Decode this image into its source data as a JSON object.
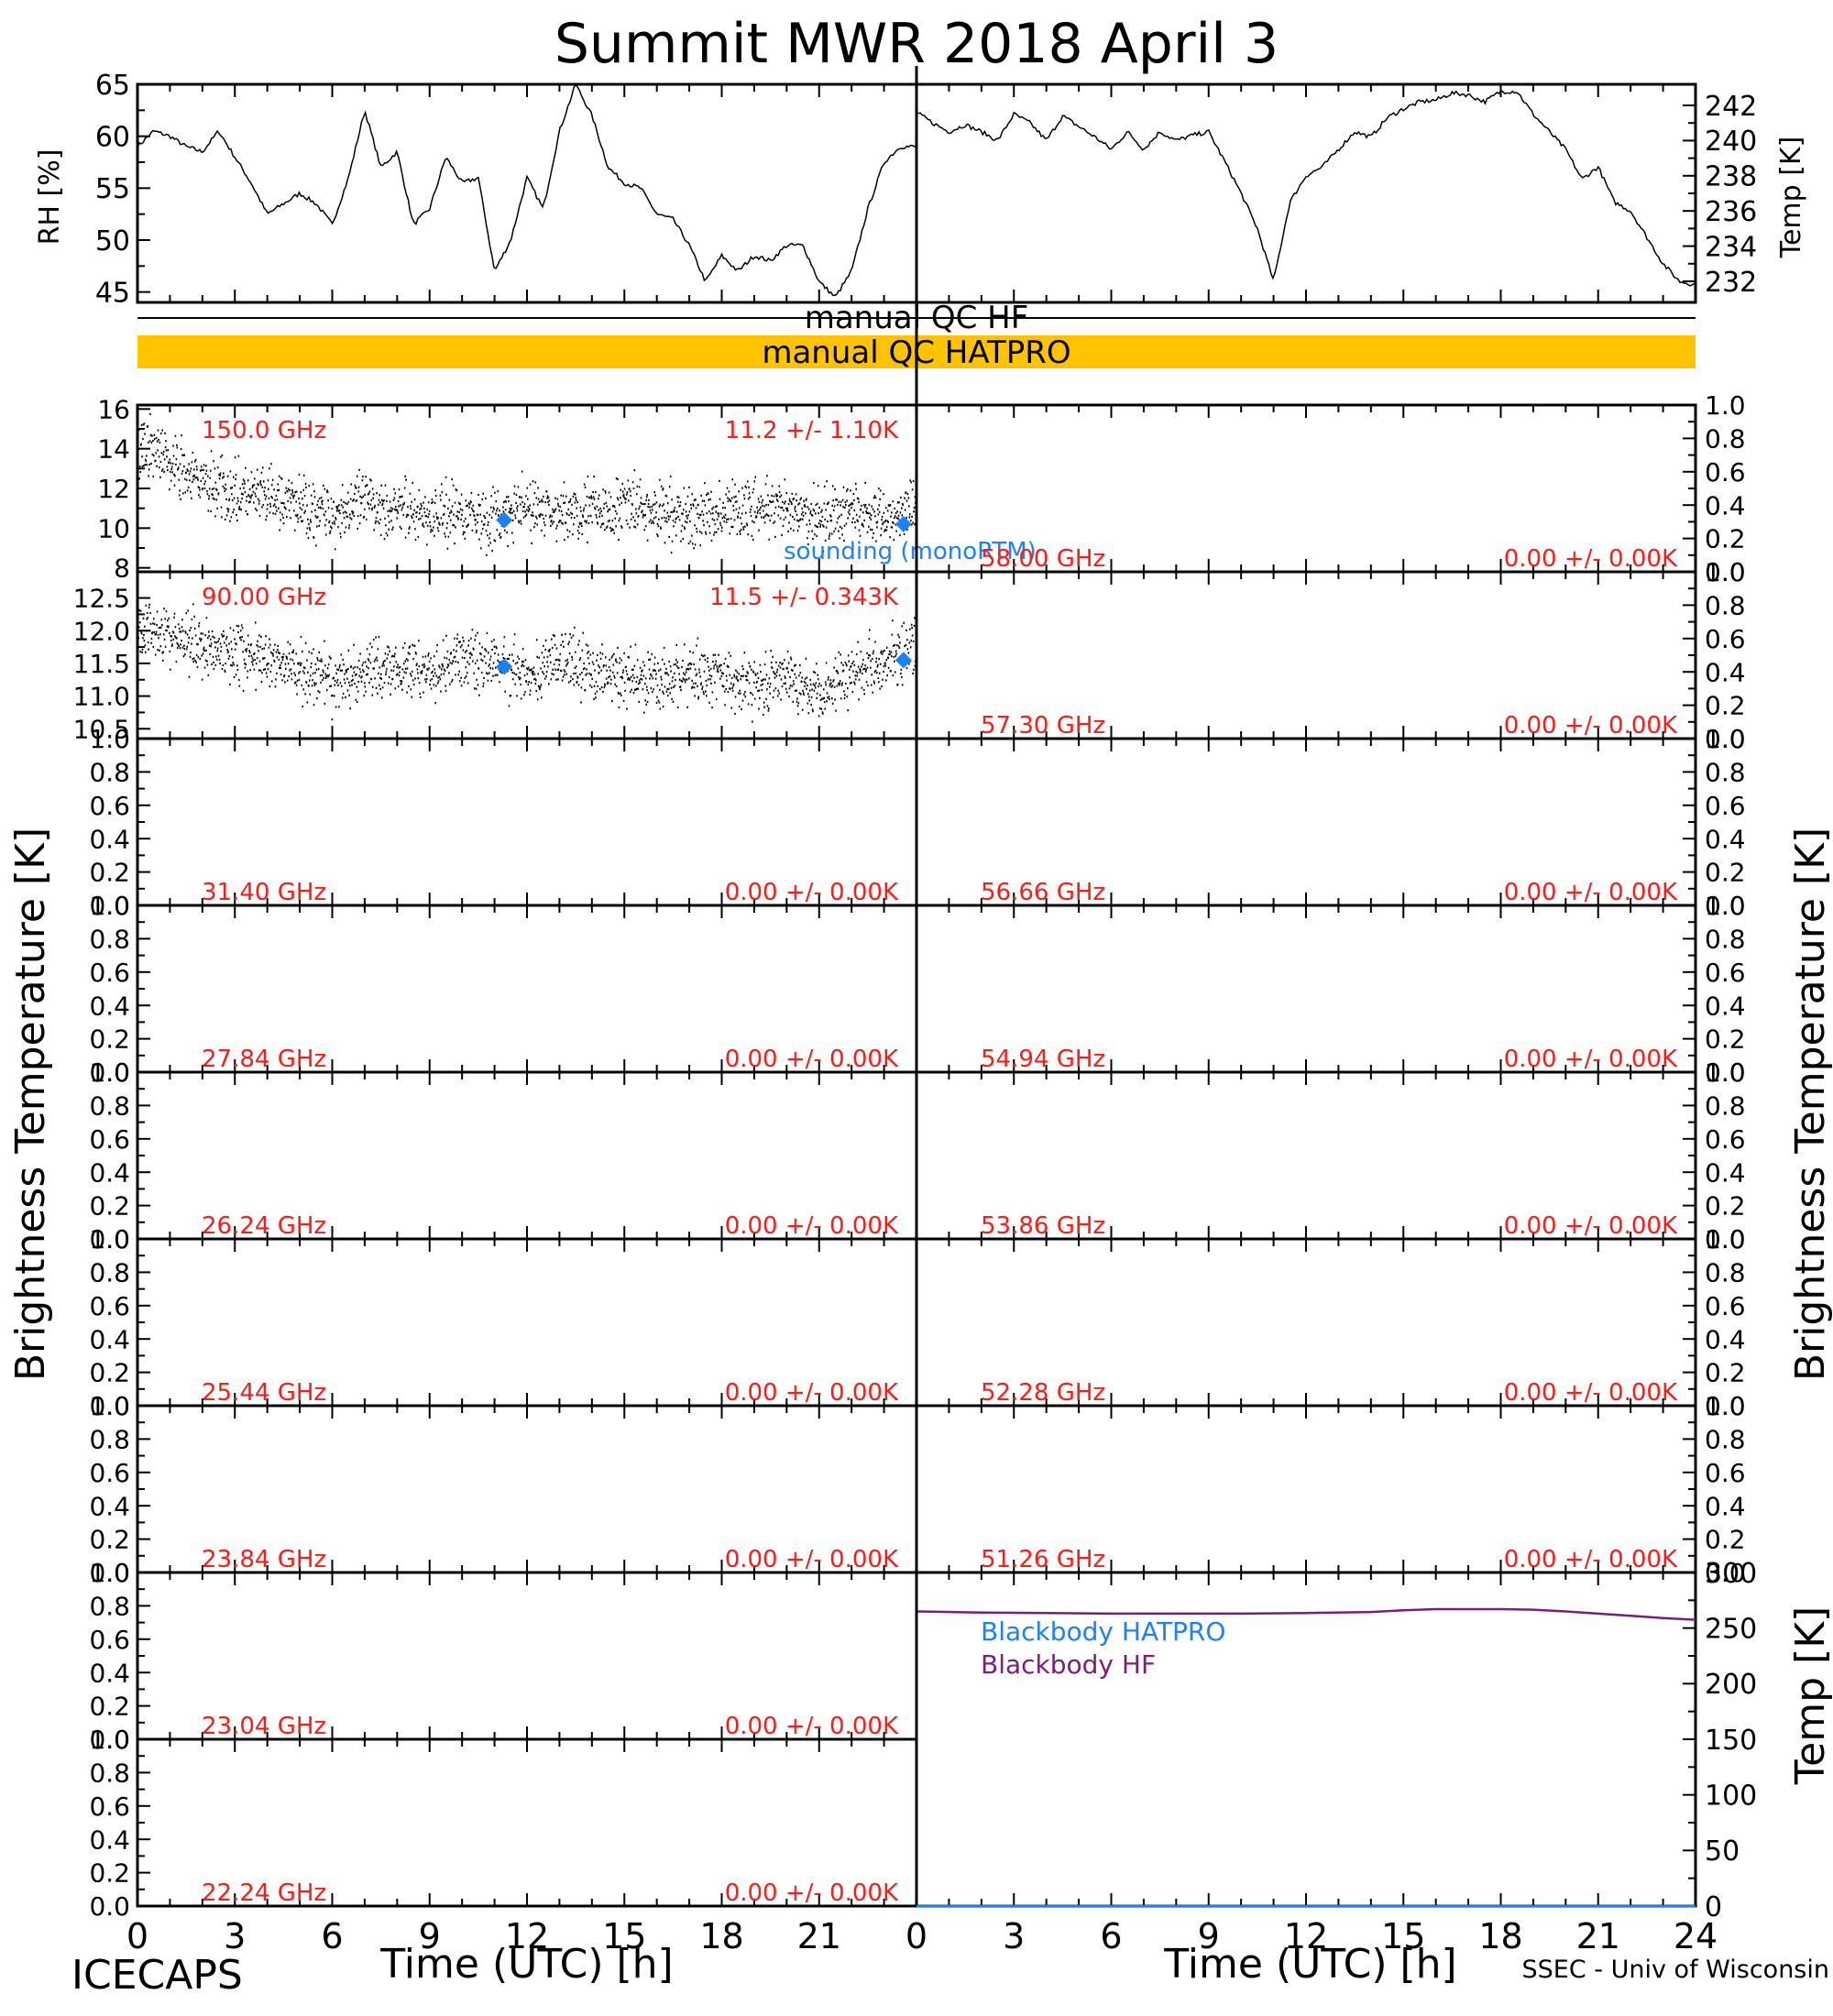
{
  "title": "Summit MWR 2018 April  3",
  "footer": {
    "left": "ICECAPS",
    "right": "SSEC - Univ of Wisconsin"
  },
  "colors": {
    "axis": "#000000",
    "data": "#000000",
    "channel_label": "#ff1a1a",
    "sounding": "#1a82ff",
    "qc_band": "#ffc300",
    "bb_hatpro": "#1a82ff",
    "bb_hf": "#7a1f78"
  },
  "qc": {
    "hf_label": "manual  QC HF",
    "hatpro_label": "manual  QC HATPRO"
  },
  "axis_labels": {
    "time": "Time (UTC) [h]",
    "brightness": "Brightness Temperature [K]",
    "rh": "RH [%]",
    "temp": "Temp [K]"
  },
  "chart_data": [
    {
      "type": "line",
      "name": "rh-panel",
      "ylabel": "RH [%]",
      "xlim": [
        0,
        24
      ],
      "ylim": [
        44,
        65
      ],
      "yticks": [
        "45",
        "50",
        "55",
        "60",
        "65"
      ],
      "x": [
        0,
        0.5,
        1,
        1.5,
        2,
        2.5,
        3,
        3.5,
        4,
        4.5,
        5,
        5.5,
        6,
        6.5,
        7,
        7.5,
        8,
        8.5,
        9,
        9.5,
        10,
        10.5,
        11,
        11.5,
        12,
        12.5,
        13,
        13.5,
        14,
        14.5,
        15,
        15.5,
        16,
        16.5,
        17,
        17.5,
        18,
        18.5,
        19,
        19.5,
        20,
        20.5,
        21,
        21.5,
        22,
        22.5,
        23,
        23.5,
        24
      ],
      "y": [
        59,
        60.5,
        60,
        59,
        58.5,
        60.5,
        58,
        55.5,
        52.5,
        53.5,
        54.5,
        53.5,
        51.5,
        56,
        62.5,
        57,
        58.5,
        51.5,
        53,
        58,
        55.5,
        56,
        47,
        50,
        56,
        53,
        60.5,
        65,
        62,
        57,
        55.5,
        55,
        52.5,
        52,
        49.5,
        46,
        48.5,
        47,
        48.5,
        48,
        49.5,
        49.5,
        46,
        44.5,
        47,
        53,
        57.5,
        59,
        59
      ]
    },
    {
      "type": "line",
      "name": "temp-panel",
      "ylabel": "Temp [K]",
      "xlim": [
        0,
        24
      ],
      "ylim": [
        230.8,
        243.2
      ],
      "yticks": [
        "232",
        "234",
        "236",
        "238",
        "240",
        "242"
      ],
      "x": [
        0,
        0.5,
        1,
        1.5,
        2,
        2.5,
        3,
        3.5,
        4,
        4.5,
        5,
        5.5,
        6,
        6.5,
        7,
        7.5,
        8,
        8.5,
        9,
        9.5,
        10,
        10.5,
        11,
        11.5,
        12,
        12.5,
        13,
        13.5,
        14,
        14.5,
        15,
        15.5,
        16,
        16.5,
        17,
        17.5,
        18,
        18.5,
        19,
        19.5,
        20,
        20.5,
        21,
        21.5,
        22,
        22.5,
        23,
        23.5,
        24
      ],
      "y": [
        241.6,
        241,
        240.5,
        240.9,
        240.5,
        240,
        241.5,
        241,
        240,
        241.4,
        240.8,
        240.2,
        239.5,
        240.5,
        239.5,
        240.5,
        240,
        240.3,
        240.5,
        238.8,
        237,
        235,
        232,
        236.5,
        238,
        238.5,
        239.5,
        240.5,
        240.2,
        241.3,
        241.8,
        242.2,
        242.3,
        242.7,
        242.6,
        242.2,
        242.8,
        242.8,
        241.5,
        240.5,
        239.5,
        237.8,
        238.5,
        236.5,
        236,
        234.5,
        233,
        232,
        231.8
      ]
    },
    {
      "type": "scatter",
      "name": "150.0 GHz",
      "label": "150.0 GHz",
      "stat": "11.2 +/-  1.10K",
      "xlim": [
        0,
        24
      ],
      "ylim": [
        7.8,
        16.2
      ],
      "yticks": [
        "8",
        "10",
        "12",
        "14",
        "16"
      ],
      "trend_x": [
        0,
        0.5,
        1,
        2,
        3,
        4,
        5,
        6,
        7,
        8,
        9,
        10,
        11,
        12,
        13,
        14,
        15,
        16,
        17,
        18,
        19,
        20,
        21,
        22,
        23,
        24
      ],
      "trend_y": [
        14,
        14.2,
        13.2,
        12.3,
        11.8,
        11.5,
        11.2,
        10.8,
        11.3,
        11.0,
        10.7,
        10.9,
        10.4,
        11.1,
        10.8,
        10.9,
        11.2,
        10.8,
        10.6,
        10.9,
        11.1,
        10.8,
        10.7,
        11.0,
        10.5,
        11.2
      ],
      "noise": 1.1,
      "sounding_x": [
        11.3,
        23.6
      ],
      "sounding_y": [
        10.4,
        10.2
      ],
      "sounding_label": "sounding (monoRTM)"
    },
    {
      "type": "scatter",
      "name": "90.00 GHz",
      "label": "90.00 GHz",
      "stat": "11.5 +/- 0.343K",
      "xlim": [
        0,
        24
      ],
      "ylim": [
        10.35,
        12.9
      ],
      "yticks": [
        "10.5",
        "11.0",
        "11.5",
        "12.0",
        "12.5"
      ],
      "trend_x": [
        0,
        0.5,
        1,
        2,
        3,
        4,
        5,
        6,
        7,
        8,
        9,
        10,
        11,
        12,
        13,
        14,
        15,
        16,
        17,
        18,
        19,
        20,
        21,
        22,
        23,
        24
      ],
      "trend_y": [
        12.0,
        12.1,
        11.9,
        11.8,
        11.7,
        11.6,
        11.4,
        11.2,
        11.4,
        11.5,
        11.4,
        11.6,
        11.5,
        11.3,
        11.6,
        11.4,
        11.3,
        11.2,
        11.4,
        11.3,
        11.2,
        11.3,
        11.1,
        11.4,
        11.6,
        11.7
      ],
      "noise": 0.34,
      "sounding_x": [
        11.3,
        23.6
      ],
      "sounding_y": [
        11.45,
        11.55
      ]
    },
    {
      "type": "line",
      "name": "58.00 GHz",
      "label": "58.00 GHz",
      "stat": "0.00 +/-  0.00K",
      "xlim": [
        0,
        24
      ],
      "ylim": [
        0,
        1
      ]
    },
    {
      "type": "line",
      "name": "57.30 GHz",
      "label": "57.30 GHz",
      "stat": "0.00 +/-  0.00K",
      "xlim": [
        0,
        24
      ],
      "ylim": [
        0,
        1
      ]
    },
    {
      "type": "line",
      "name": "31.40 GHz",
      "label": "31.40 GHz",
      "stat": "0.00 +/-  0.00K",
      "xlim": [
        0,
        24
      ],
      "ylim": [
        0,
        1
      ]
    },
    {
      "type": "line",
      "name": "56.66 GHz",
      "label": "56.66 GHz",
      "stat": "0.00 +/-  0.00K",
      "xlim": [
        0,
        24
      ],
      "ylim": [
        0,
        1
      ]
    },
    {
      "type": "line",
      "name": "27.84 GHz",
      "label": "27.84 GHz",
      "stat": "0.00 +/-  0.00K",
      "xlim": [
        0,
        24
      ],
      "ylim": [
        0,
        1
      ]
    },
    {
      "type": "line",
      "name": "54.94 GHz",
      "label": "54.94 GHz",
      "stat": "0.00 +/-  0.00K",
      "xlim": [
        0,
        24
      ],
      "ylim": [
        0,
        1
      ]
    },
    {
      "type": "line",
      "name": "26.24 GHz",
      "label": "26.24 GHz",
      "stat": "0.00 +/-  0.00K",
      "xlim": [
        0,
        24
      ],
      "ylim": [
        0,
        1
      ]
    },
    {
      "type": "line",
      "name": "53.86 GHz",
      "label": "53.86 GHz",
      "stat": "0.00 +/-  0.00K",
      "xlim": [
        0,
        24
      ],
      "ylim": [
        0,
        1
      ]
    },
    {
      "type": "line",
      "name": "25.44 GHz",
      "label": "25.44 GHz",
      "stat": "0.00 +/-  0.00K",
      "xlim": [
        0,
        24
      ],
      "ylim": [
        0,
        1
      ]
    },
    {
      "type": "line",
      "name": "52.28 GHz",
      "label": "52.28 GHz",
      "stat": "0.00 +/-  0.00K",
      "xlim": [
        0,
        24
      ],
      "ylim": [
        0,
        1
      ]
    },
    {
      "type": "line",
      "name": "23.84 GHz",
      "label": "23.84 GHz",
      "stat": "0.00 +/-  0.00K",
      "xlim": [
        0,
        24
      ],
      "ylim": [
        0,
        1
      ]
    },
    {
      "type": "line",
      "name": "51.26 GHz",
      "label": "51.26 GHz",
      "stat": "0.00 +/-  0.00K",
      "xlim": [
        0,
        24
      ],
      "ylim": [
        0,
        1
      ]
    },
    {
      "type": "line",
      "name": "23.04 GHz",
      "label": "23.04 GHz",
      "stat": "0.00 +/-  0.00K",
      "xlim": [
        0,
        24
      ],
      "ylim": [
        0,
        1
      ]
    },
    {
      "type": "line",
      "name": "22.24 GHz",
      "label": "22.24 GHz",
      "stat": "0.00 +/-  0.00K",
      "xlim": [
        0,
        24
      ],
      "ylim": [
        0,
        1
      ]
    },
    {
      "type": "line",
      "name": "blackbody",
      "ylabel": "Temp [K]",
      "xlim": [
        0,
        24
      ],
      "ylim": [
        0,
        300
      ],
      "yticks": [
        "0",
        "50",
        "100",
        "150",
        "200",
        "250",
        "300"
      ],
      "series": [
        {
          "name": "Blackbody HATPRO",
          "x": [
            0,
            24
          ],
          "y": [
            0,
            0
          ]
        },
        {
          "name": "Blackbody HF",
          "x": [
            0,
            2,
            4,
            6,
            8,
            10,
            12,
            14,
            15,
            16,
            17,
            18,
            19,
            20,
            21,
            22,
            23,
            24
          ],
          "y": [
            265,
            264,
            263.5,
            263,
            263,
            263,
            263.5,
            264.5,
            266,
            267,
            267,
            267,
            266.5,
            265,
            263,
            261,
            259,
            257.5
          ]
        }
      ]
    }
  ],
  "brightness_yticks": [
    "0.0",
    "0.2",
    "0.4",
    "0.6",
    "0.8",
    "1.0"
  ],
  "xticks": [
    "0",
    "3",
    "6",
    "9",
    "12",
    "15",
    "18",
    "21",
    "24"
  ]
}
